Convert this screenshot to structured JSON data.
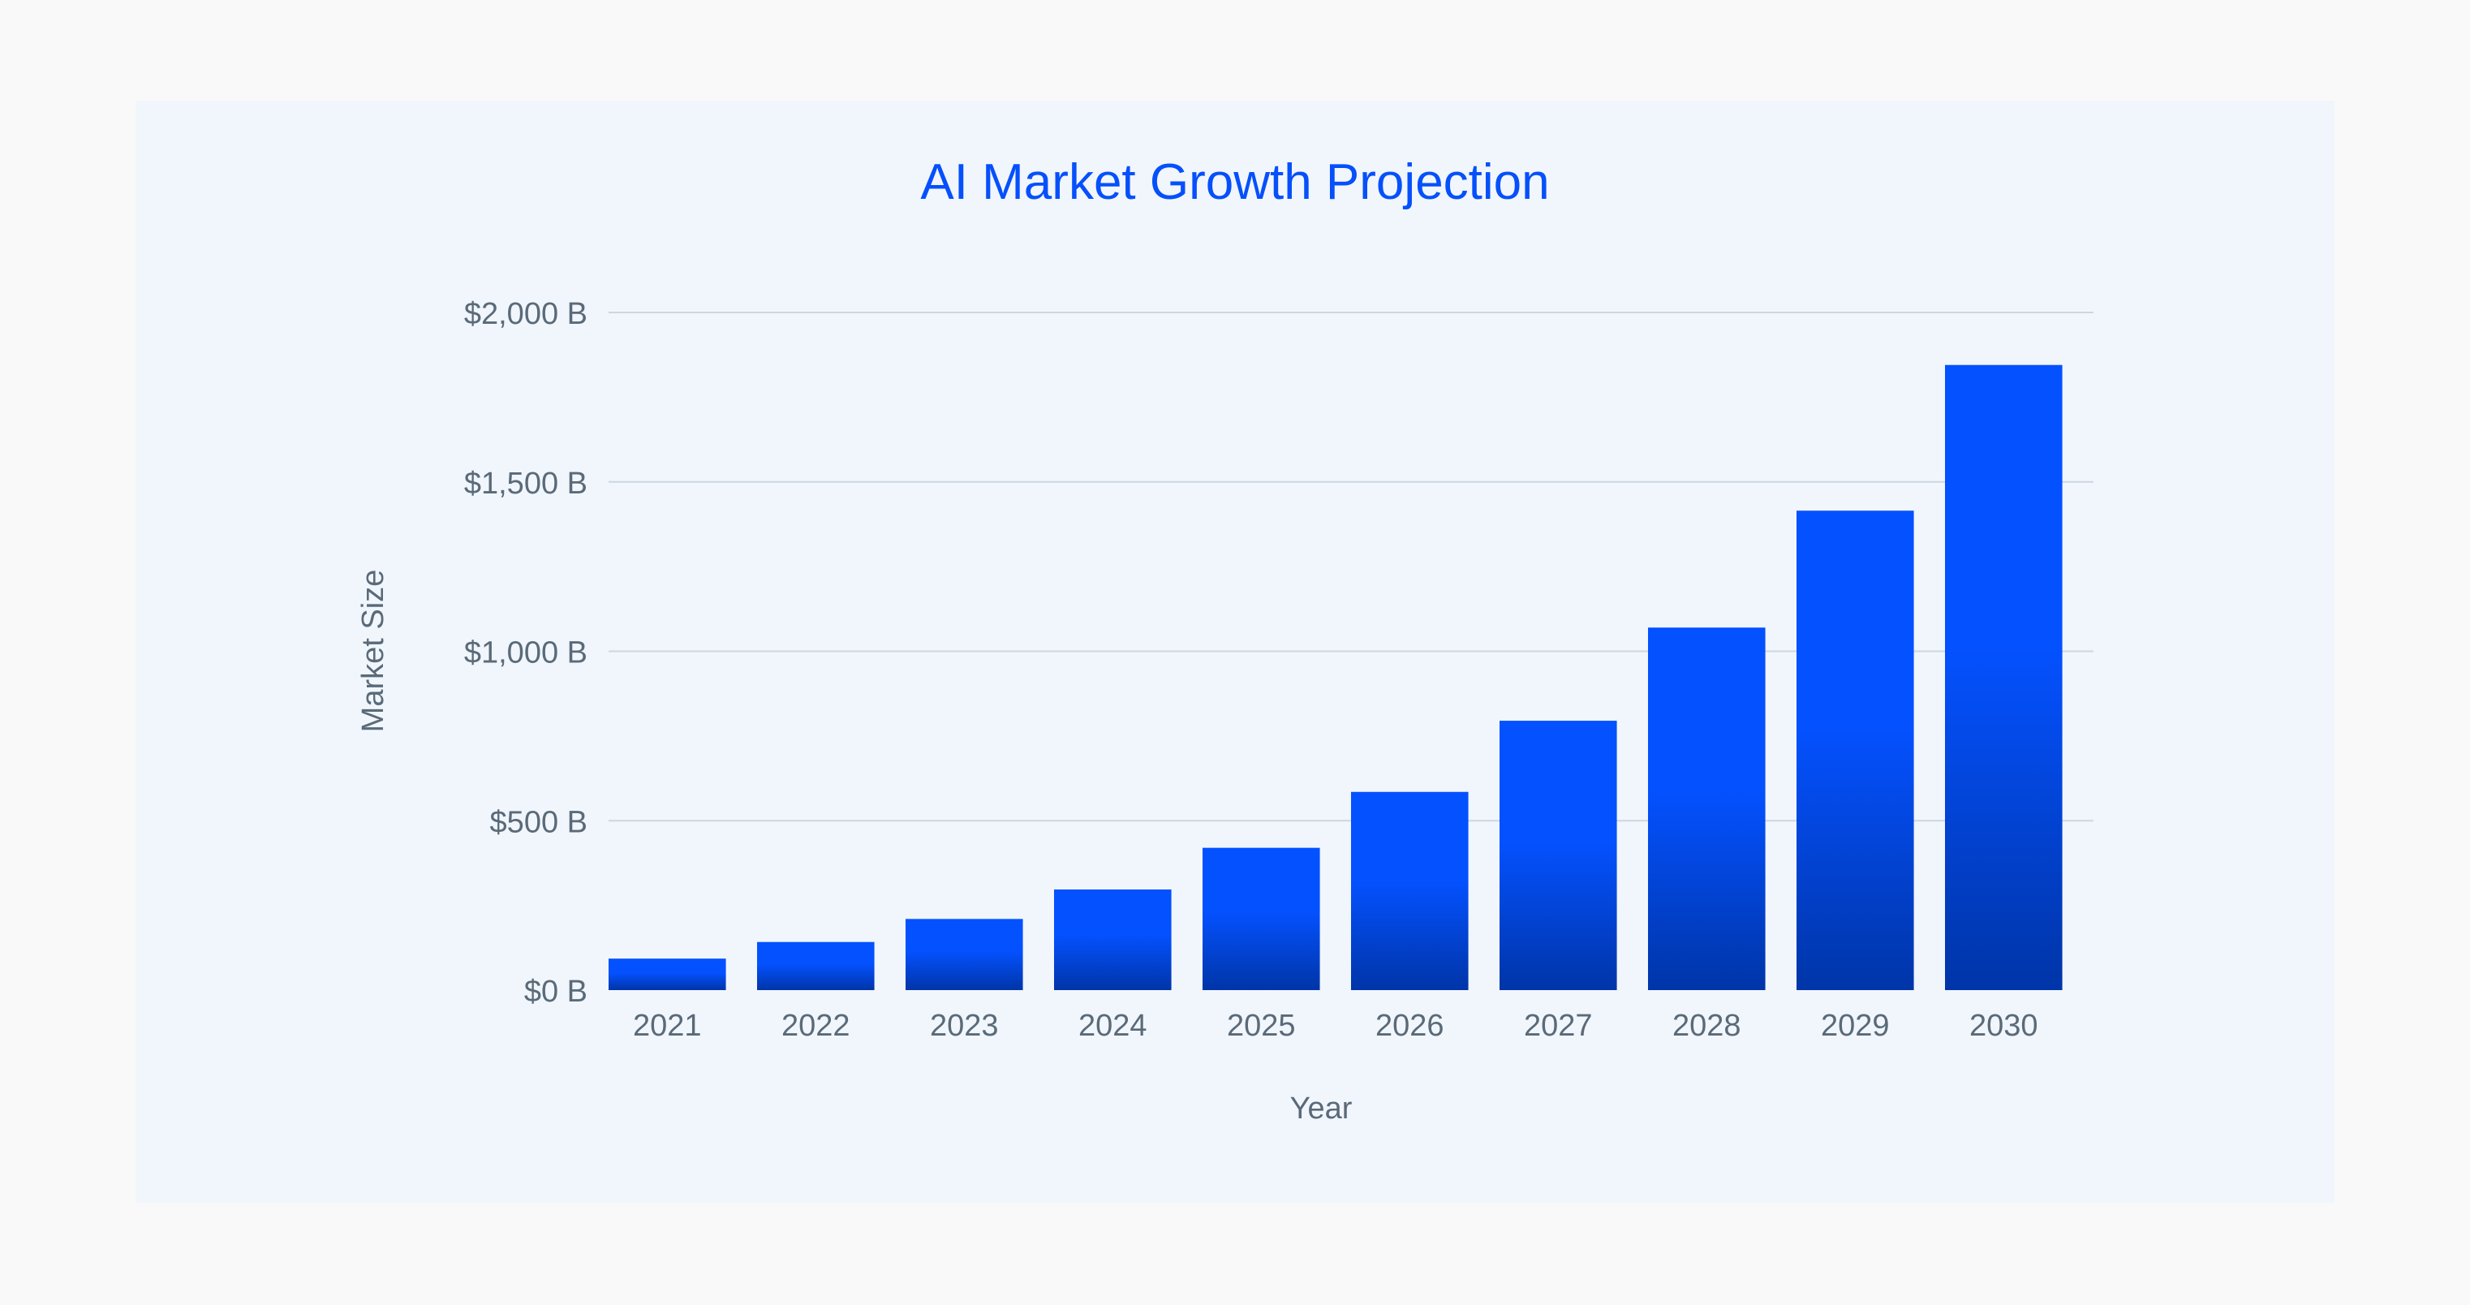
{
  "chart_data": {
    "type": "bar",
    "title": "AI Market Growth Projection",
    "xlabel": "Year",
    "ylabel": "Market Size",
    "categories": [
      "2021",
      "2022",
      "2023",
      "2024",
      "2025",
      "2026",
      "2027",
      "2028",
      "2029",
      "2030"
    ],
    "values": [
      93,
      142,
      210,
      297,
      420,
      585,
      795,
      1070,
      1415,
      1845
    ],
    "ylim": [
      0,
      2000
    ],
    "yticks": [
      0,
      500,
      1000,
      1500,
      2000
    ],
    "ytick_labels": [
      "$0 B",
      "$500 B",
      "$1,000 B",
      "$1,500 B",
      "$2,000 B"
    ],
    "grid": true,
    "legend": "none",
    "colors": {
      "bar_top": "#0451ff",
      "bar_bottom": "#0035a8",
      "title": "#0650fb",
      "text": "#5a6a78",
      "grid": "#cdd5e0",
      "card_bg": "#f1f6fd",
      "page_bg": "#f9f9f9"
    }
  }
}
